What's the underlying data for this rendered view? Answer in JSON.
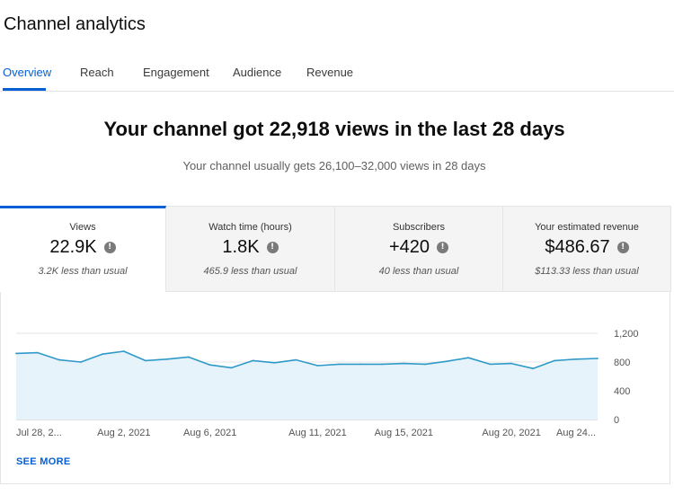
{
  "page_title": "Channel analytics",
  "tabs": [
    {
      "label": "Overview",
      "active": true
    },
    {
      "label": "Reach",
      "active": false
    },
    {
      "label": "Engagement",
      "active": false
    },
    {
      "label": "Audience",
      "active": false
    },
    {
      "label": "Revenue",
      "active": false
    }
  ],
  "headline": "Your channel got 22,918 views in the last 28 days",
  "subline": "Your channel usually gets 26,100–32,000 views in 28 days",
  "metrics": [
    {
      "label": "Views",
      "value": "22.9K",
      "note": "3.2K less than usual",
      "active": true
    },
    {
      "label": "Watch time (hours)",
      "value": "1.8K",
      "note": "465.9 less than usual",
      "active": false
    },
    {
      "label": "Subscribers",
      "value": "+420",
      "note": "40 less than usual",
      "active": false
    },
    {
      "label": "Your estimated revenue",
      "value": "$486.67",
      "note": "$113.33 less than usual",
      "active": false
    }
  ],
  "colors": {
    "accent": "#065fd4",
    "line": "#2f9ac9",
    "area": "#e6f3fa"
  },
  "chart_data": {
    "type": "area",
    "x_tick_labels": [
      "Jul 28, 2...",
      "Aug 2, 2021",
      "Aug 6, 2021",
      "Aug 11, 2021",
      "Aug 15, 2021",
      "Aug 20, 2021",
      "Aug 24..."
    ],
    "y_ticks": [
      0,
      400,
      800,
      "1,200"
    ],
    "ylim": [
      0,
      1200
    ],
    "grid": true,
    "values": [
      920,
      930,
      830,
      800,
      910,
      950,
      820,
      840,
      870,
      760,
      720,
      820,
      790,
      830,
      750,
      770,
      770,
      770,
      780,
      770,
      810,
      860,
      770,
      780,
      710,
      820,
      840,
      850
    ]
  },
  "see_more_label": "SEE MORE"
}
